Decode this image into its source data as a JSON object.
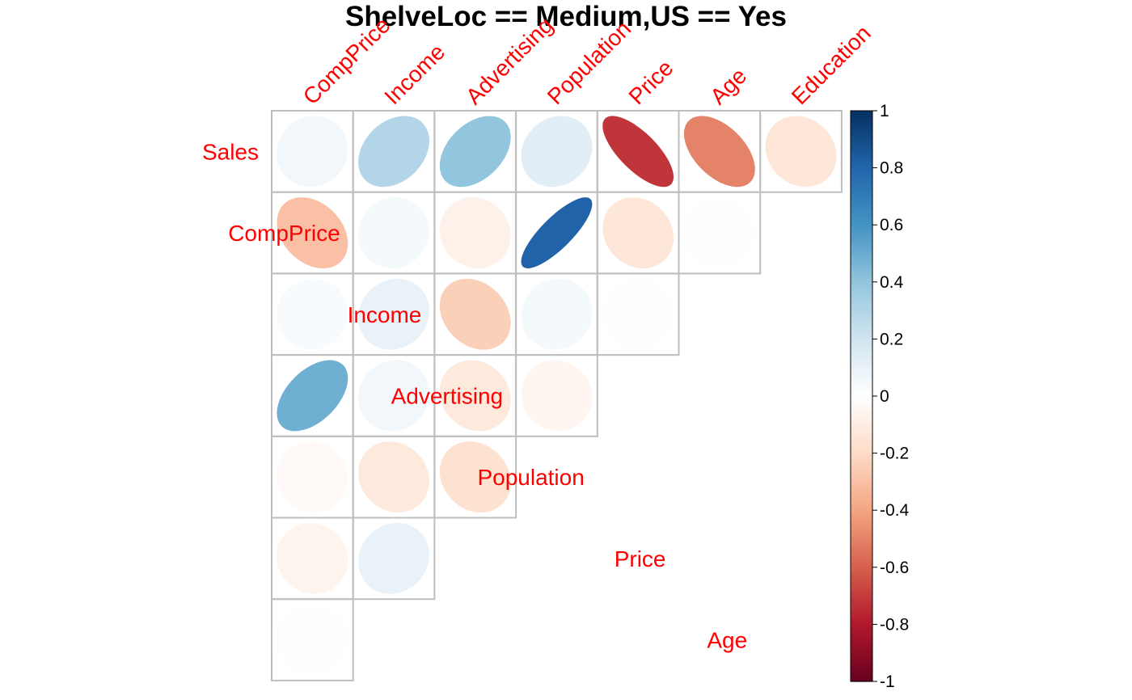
{
  "chart_data": {
    "type": "heatmap",
    "subtype": "correlation-ellipse-upper",
    "title": "ShelveLoc == Medium,US == Yes",
    "row_labels": [
      "Sales",
      "CompPrice",
      "Income",
      "Advertising",
      "Population",
      "Price",
      "Age"
    ],
    "col_labels": [
      "CompPrice",
      "Income",
      "Advertising",
      "Population",
      "Price",
      "Age",
      "Education"
    ],
    "values": [
      [
        0.06,
        0.3,
        0.4,
        0.13,
        -0.72,
        -0.5,
        -0.14
      ],
      [
        -0.3,
        0.05,
        -0.08,
        0.81,
        -0.14,
        0.01,
        null
      ],
      [
        0.03,
        0.1,
        -0.24,
        0.05,
        0.01,
        null,
        null
      ],
      [
        0.49,
        0.06,
        -0.12,
        -0.05,
        null,
        null,
        null
      ],
      [
        -0.03,
        -0.12,
        -0.16,
        null,
        null,
        null,
        null
      ],
      [
        -0.06,
        0.1,
        null,
        null,
        null,
        null,
        null
      ],
      [
        0.01,
        null,
        null,
        null,
        null,
        null,
        null
      ]
    ],
    "color_scale": {
      "range": [
        -1,
        1
      ],
      "ticks": [
        "-1",
        "-0.8",
        "-0.6",
        "-0.4",
        "-0.2",
        "0",
        "0.2",
        "0.4",
        "0.6",
        "0.8",
        "1"
      ],
      "colors": [
        "#67001F",
        "#B2182B",
        "#D6604D",
        "#F4A582",
        "#FDDBC7",
        "#FFFFFF",
        "#D1E5F0",
        "#92C5DE",
        "#4393C3",
        "#2166AC",
        "#053061"
      ]
    },
    "legend_position": "right",
    "label_color": "#FF0000"
  }
}
